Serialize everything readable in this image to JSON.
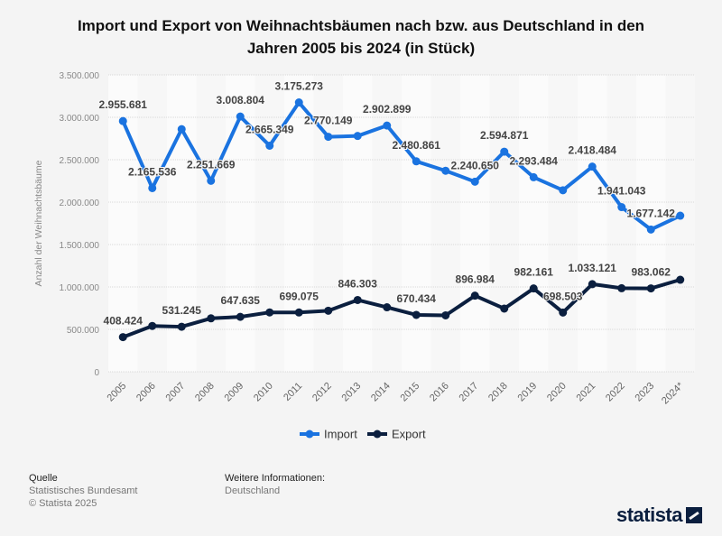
{
  "chart_data": {
    "type": "line",
    "title": "Import und Export von Weihnachtsbäumen nach bzw. aus Deutschland in den Jahren 2005 bis 2024 (in Stück)",
    "xlabel": "",
    "ylabel": "Anzahl der Weihnachtsbäume",
    "ylim": [
      0,
      3500000
    ],
    "yticks": [
      0,
      500000,
      1000000,
      1500000,
      2000000,
      2500000,
      3000000,
      3500000
    ],
    "ytick_labels": [
      "0",
      "500.000",
      "1.000.000",
      "1.500.000",
      "2.000.000",
      "2.500.000",
      "3.000.000",
      "3.500.000"
    ],
    "categories": [
      "2005",
      "2006",
      "2007",
      "2008",
      "2009",
      "2010",
      "2011",
      "2012",
      "2013",
      "2014",
      "2015",
      "2016",
      "2017",
      "2018",
      "2019",
      "2020",
      "2021",
      "2022",
      "2023",
      "2024*"
    ],
    "grid": true,
    "legend": "bottom",
    "series": [
      {
        "name": "Import",
        "color": "#1a73e0",
        "values": [
          2955681,
          2165536,
          2860000,
          2251669,
          3008804,
          2665349,
          3175273,
          2770149,
          2780000,
          2902899,
          2480861,
          2370000,
          2240650,
          2594871,
          2293484,
          2140000,
          2418484,
          1941043,
          1677142,
          1840000
        ],
        "labels": [
          "2.955.681",
          "2.165.536",
          null,
          "2.251.669",
          "3.008.804",
          "2.665.349",
          "3.175.273",
          "2.770.149",
          null,
          "2.902.899",
          "2.480.861",
          null,
          "2.240.650",
          "2.594.871",
          "2.293.484",
          null,
          "2.418.484",
          "1.941.043",
          "1.677.142",
          null
        ]
      },
      {
        "name": "Export",
        "color": "#0b1f3f",
        "values": [
          408424,
          540000,
          531245,
          630000,
          647635,
          700000,
          699075,
          720000,
          846303,
          760000,
          670434,
          665000,
          896984,
          745000,
          982161,
          698503,
          1033121,
          985000,
          983062,
          1085000
        ],
        "labels": [
          "408.424",
          null,
          "531.245",
          null,
          "647.635",
          null,
          "699.075",
          null,
          "846.303",
          null,
          "670.434",
          null,
          "896.984",
          null,
          "982.161",
          "698.503",
          "1.033.121",
          null,
          "983.062",
          null
        ]
      }
    ]
  },
  "footer": {
    "source_heading": "Quelle",
    "source": "Statistisches Bundesamt",
    "copyright": "© Statista 2025",
    "info_heading": "Weitere Informationen:",
    "info": "Deutschland"
  },
  "logo": "statista"
}
